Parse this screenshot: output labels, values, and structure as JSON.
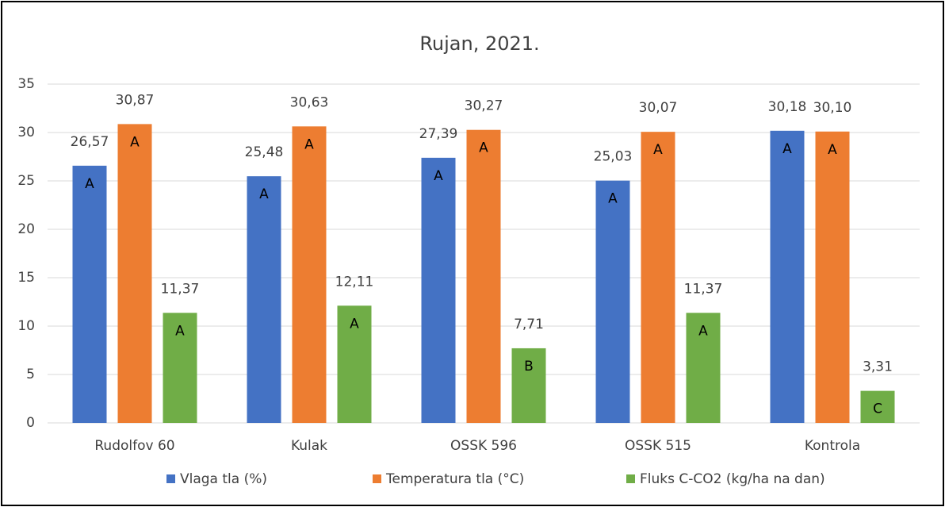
{
  "chart_data": {
    "type": "bar",
    "title": "Rujan, 2021.",
    "categories": [
      "Rudolfov 60",
      "Kulak",
      "OSSK 596",
      "OSSK 515",
      "Kontrola"
    ],
    "series": [
      {
        "name": "Vlaga tla (%)",
        "color": "#4472c4",
        "values": [
          26.57,
          25.48,
          27.39,
          25.03,
          30.18
        ],
        "value_labels": [
          "26,57",
          "25,48",
          "27,39",
          "25,03",
          "30,18"
        ],
        "letters": [
          "A",
          "A",
          "A",
          "A",
          "A"
        ]
      },
      {
        "name": "Temperatura tla (°C)",
        "color": "#ed7d31",
        "values": [
          30.87,
          30.63,
          30.27,
          30.07,
          30.1
        ],
        "value_labels": [
          "30,87",
          "30,63",
          "30,27",
          "30,07",
          "30,10"
        ],
        "letters": [
          "A",
          "A",
          "A",
          "A",
          "A"
        ]
      },
      {
        "name": "Fluks C-CO2 (kg/ha na dan)",
        "color": "#70ad47",
        "values": [
          11.37,
          12.11,
          7.71,
          11.37,
          3.31
        ],
        "value_labels": [
          "11,37",
          "12,11",
          "7,71",
          "11,37",
          "3,31"
        ],
        "letters": [
          "A",
          "A",
          "B",
          "A",
          "C"
        ]
      }
    ],
    "ylim": [
      0,
      35
    ],
    "yticks": [
      0,
      5,
      10,
      15,
      20,
      25,
      30,
      35
    ],
    "grid": true,
    "legend": "bottom"
  }
}
